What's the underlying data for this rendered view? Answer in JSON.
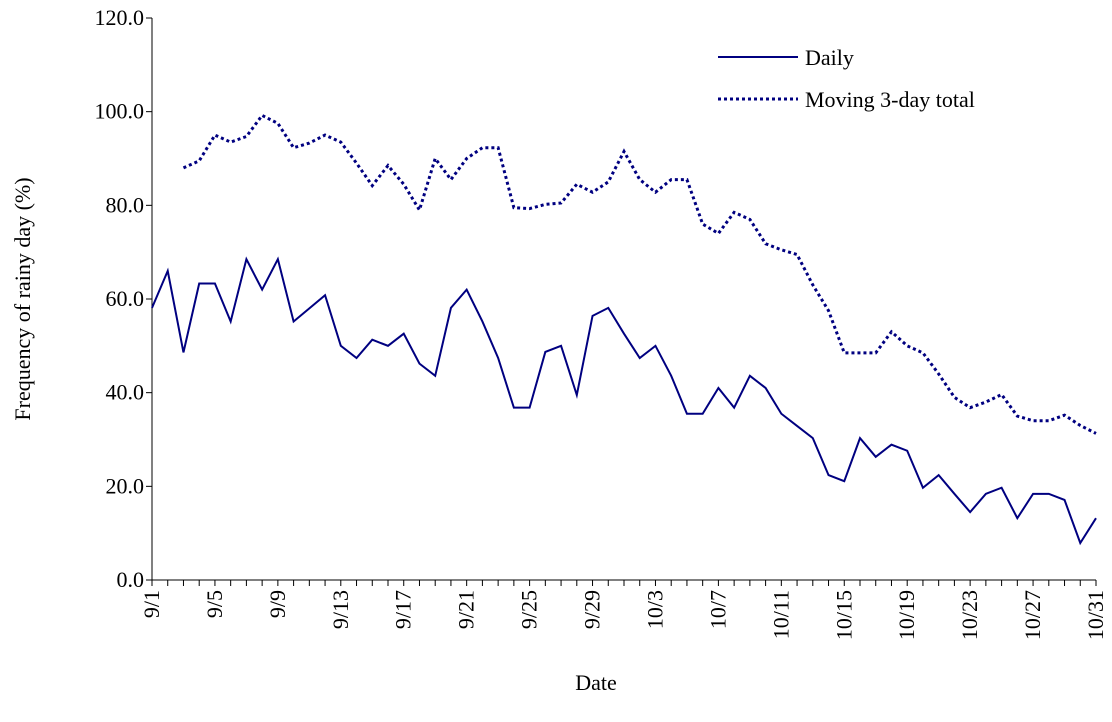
{
  "chart_data": {
    "type": "line",
    "x_label": "Date",
    "y_label": "Frequency of rainy day (%)",
    "categories": [
      "9/1",
      null,
      null,
      null,
      "9/5",
      null,
      null,
      null,
      "9/9",
      null,
      null,
      null,
      "9/13",
      null,
      null,
      null,
      "9/17",
      null,
      null,
      null,
      "9/21",
      null,
      null,
      null,
      "9/25",
      null,
      null,
      null,
      "9/29",
      null,
      null,
      null,
      "10/3",
      null,
      null,
      null,
      "10/7",
      null,
      null,
      null,
      "10/11",
      null,
      null,
      null,
      "10/15",
      null,
      null,
      null,
      "10/19",
      null,
      null,
      null,
      "10/23",
      null,
      null,
      null,
      "10/27",
      null,
      null,
      null,
      "10/31"
    ],
    "series": [
      {
        "name": "Daily",
        "color": "#000080",
        "dash": "solid",
        "values": [
          58.1,
          66,
          48.6,
          63.3,
          63.3,
          55.2,
          68.5,
          62,
          68.5,
          55.2,
          58,
          60.8,
          50,
          47.4,
          51.3,
          50,
          52.6,
          46.2,
          43.6,
          58.1,
          62,
          55.2,
          47.4,
          36.8,
          36.8,
          48.7,
          50,
          39.5,
          56.4,
          58.1,
          52.6,
          47.4,
          50,
          43.6,
          35.5,
          35.5,
          41,
          36.8,
          43.6,
          41,
          35.5,
          32.9,
          30.3,
          22.4,
          21.1,
          30.3,
          26.3,
          28.9,
          27.6,
          19.7,
          22.4,
          18.4,
          14.5,
          18.4,
          19.7,
          13.2,
          18.4,
          18.4,
          17.1,
          7.9,
          13.2
        ]
      },
      {
        "name": "Moving 3-day total",
        "color": "#000080",
        "dash": "dotted",
        "values": [
          null,
          null,
          88,
          89.5,
          95,
          93.5,
          94.7,
          99.2,
          97.5,
          92.3,
          93.3,
          95,
          93.5,
          89,
          84.2,
          88.5,
          84.5,
          79,
          90,
          85.5,
          90,
          92.3,
          92.3,
          79.5,
          79.3,
          80.2,
          80.5,
          84.5,
          82.8,
          85,
          91.5,
          85.5,
          82.8,
          85.5,
          85.5,
          76,
          74,
          78.5,
          77,
          71.8,
          70.5,
          69.5,
          63,
          57.5,
          48.5,
          48.5,
          48.5,
          53,
          50,
          48.5,
          44,
          39,
          36.8,
          38,
          39.6,
          35,
          34,
          34,
          35.2,
          33,
          31.3
        ]
      }
    ],
    "ylim": [
      0,
      120
    ],
    "yticks": [
      {
        "value": 0,
        "label": "0.0"
      },
      {
        "value": 20,
        "label": "20.0"
      },
      {
        "value": 40,
        "label": "40.0"
      },
      {
        "value": 60,
        "label": "60.0"
      },
      {
        "value": 80,
        "label": "80.0"
      },
      {
        "value": 100,
        "label": "100.0"
      },
      {
        "value": 120,
        "label": "120.0"
      }
    ],
    "grid": false,
    "legend": "top-right"
  }
}
